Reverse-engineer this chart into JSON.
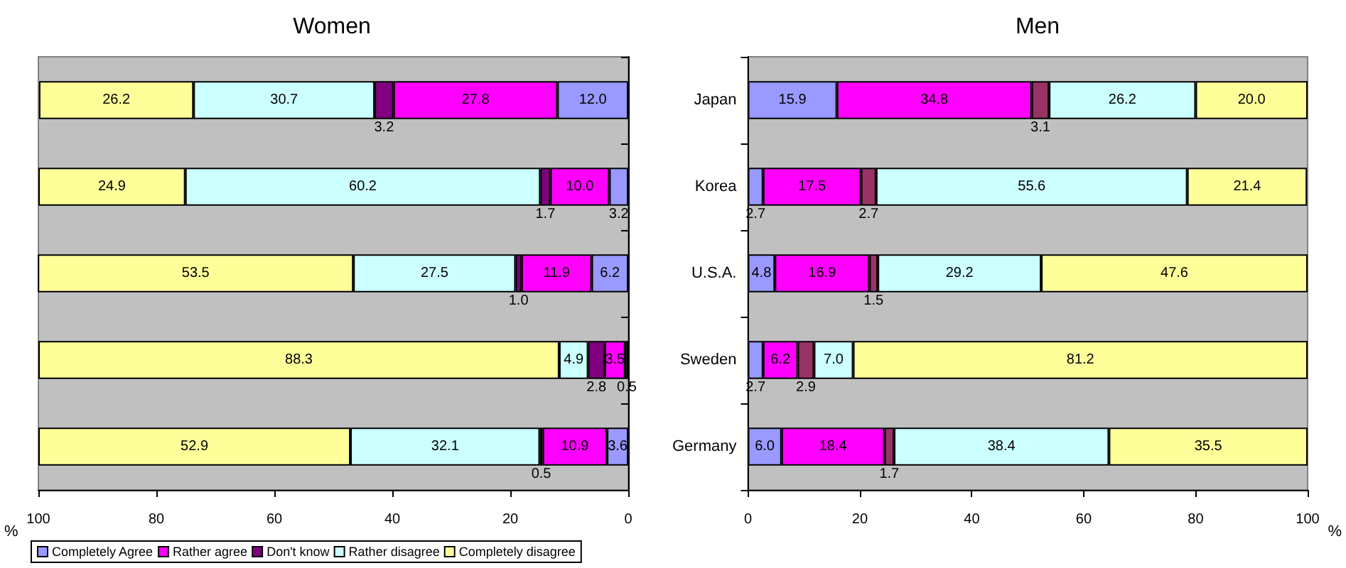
{
  "chart_data": [
    {
      "type": "bar",
      "title": "Women",
      "orientation": "horizontal",
      "stacked": true,
      "categories": [
        null,
        null,
        null,
        null,
        null
      ],
      "xlabel": "%",
      "xlim": [
        100,
        0
      ],
      "xticks": [
        100,
        80,
        60,
        40,
        20,
        0
      ],
      "tick_labels": "x",
      "grid": false,
      "legend": "bottom",
      "series": [
        {
          "name": "Completely Agree",
          "color": "#9999ff",
          "values": [
            12.0,
            3.2,
            6.2,
            0.5,
            3.6
          ],
          "value_labels": [
            "12.0",
            "3.2",
            "6.2",
            "0.5",
            "3.6"
          ]
        },
        {
          "name": "Rather agree",
          "color": "#ff00ff",
          "values": [
            27.8,
            10.0,
            11.9,
            3.5,
            10.9
          ],
          "value_labels": [
            "27.8",
            "10.0",
            "11.9",
            "3.5",
            "10.9"
          ]
        },
        {
          "name": "Don't know",
          "color": "#800080",
          "values": [
            3.2,
            1.7,
            1.0,
            2.8,
            0.5
          ],
          "value_labels": [
            "3.2",
            "1.7",
            "1.0",
            "2.8",
            "0.5"
          ]
        },
        {
          "name": "Rather disagree",
          "color": "#ccffff",
          "values": [
            30.7,
            60.2,
            27.5,
            4.9,
            32.1
          ],
          "value_labels": [
            "30.7",
            "60.2",
            "27.5",
            "4.9",
            "32.1"
          ]
        },
        {
          "name": "Completely disagree",
          "color": "#ffff99",
          "values": [
            26.2,
            24.9,
            53.5,
            88.3,
            52.9
          ],
          "value_labels": [
            "26.2",
            "24.9",
            "53.5",
            "88.3",
            "52.9"
          ]
        }
      ]
    },
    {
      "type": "bar",
      "title": "Men",
      "orientation": "horizontal",
      "stacked": true,
      "categories": [
        "Japan",
        "Korea",
        "U.S.A.",
        "Sweden",
        "Germany"
      ],
      "xlabel": "%",
      "xlim": [
        0,
        100
      ],
      "xticks": [
        0,
        20,
        40,
        60,
        80,
        100
      ],
      "grid": false,
      "series": [
        {
          "color": "#9999ff",
          "values": [
            15.9,
            2.7,
            4.8,
            2.7,
            6.0
          ],
          "value_labels": [
            "15.9",
            "2.7",
            "4.8",
            "2.7",
            "6.0"
          ]
        },
        {
          "color": "#ff00ff",
          "values": [
            34.8,
            17.5,
            16.9,
            6.2,
            18.4
          ],
          "value_labels": [
            "34.8",
            "17.5",
            "16.9",
            "6.2",
            "18.4"
          ]
        },
        {
          "color": "#993366",
          "values": [
            3.1,
            2.7,
            1.5,
            2.9,
            1.7
          ],
          "value_labels": [
            "3.1",
            "2.7",
            "1.5",
            "2.9",
            "1.7"
          ]
        },
        {
          "color": "#ccffff",
          "values": [
            26.2,
            55.6,
            29.2,
            7.0,
            38.4
          ],
          "value_labels": [
            "26.2",
            "55.6",
            "29.2",
            "7.0",
            "38.4"
          ]
        },
        {
          "color": "#ffff99",
          "values": [
            20.0,
            21.4,
            47.6,
            81.2,
            35.5
          ],
          "value_labels": [
            "20.0",
            "21.4",
            "47.6",
            "81.2",
            "35.5"
          ]
        }
      ]
    }
  ]
}
